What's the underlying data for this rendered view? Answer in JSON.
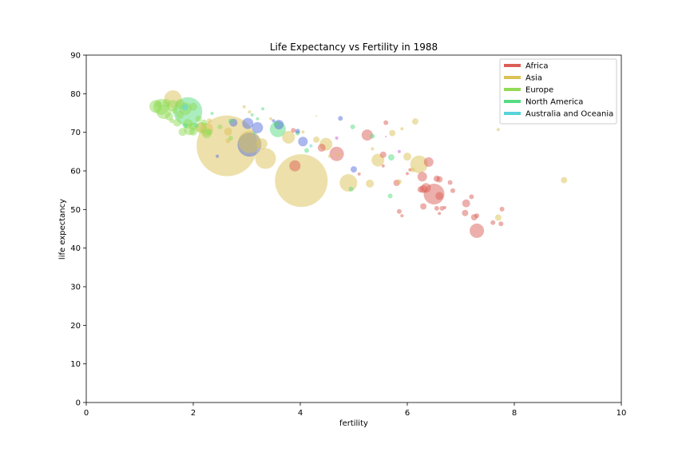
{
  "chart_data": {
    "type": "scatter",
    "title": "Life Expectancy vs Fertility in 1988",
    "xlabel": "fertility",
    "ylabel": "life expectancy",
    "xlim": [
      0,
      10
    ],
    "ylim": [
      0,
      90
    ],
    "xticks": [
      0,
      2,
      4,
      6,
      8,
      10
    ],
    "yticks": [
      0,
      10,
      20,
      30,
      40,
      50,
      60,
      70,
      80,
      90
    ],
    "grid": false,
    "legend_position": "top-right",
    "point_alpha": 0.5,
    "series": [
      {
        "name": "Africa",
        "color": "#db5f57",
        "points": [
          [
            5.25,
            69.3,
            7
          ],
          [
            5.6,
            72.5,
            3
          ],
          [
            5.9,
            48.4,
            2
          ],
          [
            5.85,
            49.5,
            3
          ],
          [
            6.5,
            54.0,
            13
          ],
          [
            6.55,
            58.0,
            4
          ],
          [
            6.6,
            53.5,
            5
          ],
          [
            6.65,
            50.3,
            3
          ],
          [
            6.4,
            62.3,
            6
          ],
          [
            6.28,
            58.5,
            6
          ],
          [
            6.3,
            55.3,
            5
          ],
          [
            6.35,
            55.6,
            6
          ],
          [
            6.3,
            50.8,
            4
          ],
          [
            6.55,
            50.3,
            3
          ],
          [
            6.6,
            57.8,
            4
          ],
          [
            6.7,
            50.5,
            2
          ],
          [
            6.85,
            54.9,
            3
          ],
          [
            6.8,
            57.0,
            3
          ],
          [
            7.08,
            49.1,
            4
          ],
          [
            7.1,
            51.6,
            5
          ],
          [
            7.2,
            53.3,
            3
          ],
          [
            7.25,
            48.0,
            4
          ],
          [
            7.3,
            48.4,
            3
          ],
          [
            7.3,
            44.5,
            9
          ],
          [
            7.6,
            46.6,
            3
          ],
          [
            7.77,
            50.1,
            3
          ],
          [
            7.75,
            46.3,
            3
          ],
          [
            5.55,
            64.2,
            4
          ],
          [
            5.8,
            56.9,
            4
          ],
          [
            4.68,
            64.4,
            9
          ],
          [
            4.4,
            66.0,
            5
          ],
          [
            3.87,
            70.5,
            3
          ],
          [
            3.9,
            61.3,
            7
          ],
          [
            5.1,
            59.2,
            2
          ],
          [
            5.55,
            61.3,
            2
          ],
          [
            6.0,
            59.3,
            2
          ],
          [
            6.05,
            60.3,
            2
          ],
          [
            6.25,
            55.2,
            4
          ],
          [
            6.6,
            49.0,
            2
          ]
        ]
      },
      {
        "name": "Asia",
        "color": "#dbc257",
        "points": [
          [
            2.63,
            66.5,
            38
          ],
          [
            4.02,
            57.5,
            33
          ],
          [
            3.35,
            63.2,
            13
          ],
          [
            3.05,
            67.5,
            14
          ],
          [
            1.62,
            78.6,
            11
          ],
          [
            3.78,
            68.7,
            8
          ],
          [
            4.48,
            66.9,
            8
          ],
          [
            4.9,
            56.9,
            11
          ],
          [
            5.45,
            62.8,
            8
          ],
          [
            6.22,
            61.7,
            11
          ],
          [
            2.25,
            70.8,
            8
          ],
          [
            3.28,
            67.0,
            7
          ],
          [
            4.3,
            68.1,
            4
          ],
          [
            6.15,
            72.8,
            4
          ],
          [
            5.3,
            56.7,
            5
          ],
          [
            6.0,
            63.7,
            5
          ],
          [
            7.7,
            47.9,
            4
          ],
          [
            8.93,
            57.6,
            4
          ],
          [
            2.13,
            71.3,
            6
          ],
          [
            2.3,
            73.0,
            3
          ],
          [
            2.65,
            70.2,
            5
          ],
          [
            5.72,
            69.8,
            4
          ],
          [
            2.95,
            76.6,
            2
          ],
          [
            3.45,
            73.5,
            2
          ],
          [
            4.3,
            74.2,
            1
          ],
          [
            5.9,
            70.9,
            2
          ],
          [
            5.35,
            65.7,
            2
          ],
          [
            5.85,
            57.2,
            3
          ],
          [
            6.1,
            60.3,
            3
          ],
          [
            7.7,
            70.7,
            2
          ],
          [
            4.7,
            64.2,
            2
          ],
          [
            4.55,
            63.8,
            2
          ],
          [
            3.05,
            75.3,
            2
          ],
          [
            4.05,
            70.1,
            2
          ],
          [
            2.65,
            67.8,
            3
          ]
        ]
      },
      {
        "name": "Europe",
        "color": "#91db57",
        "points": [
          [
            1.4,
            76.6,
            10
          ],
          [
            1.45,
            75.3,
            9
          ],
          [
            1.62,
            76.9,
            7
          ],
          [
            1.75,
            77.3,
            6
          ],
          [
            1.85,
            76.1,
            8
          ],
          [
            1.55,
            74.1,
            5
          ],
          [
            1.7,
            72.5,
            5
          ],
          [
            1.93,
            70.7,
            7
          ],
          [
            2.0,
            71.5,
            5
          ],
          [
            2.1,
            73.5,
            4
          ],
          [
            1.8,
            70.1,
            5
          ],
          [
            1.3,
            76.7,
            8
          ],
          [
            2.15,
            71.2,
            7
          ],
          [
            2.25,
            69.7,
            6
          ],
          [
            2.2,
            72.5,
            4
          ],
          [
            1.35,
            77.3,
            4
          ],
          [
            1.5,
            77.6,
            5
          ],
          [
            1.6,
            73.0,
            3
          ],
          [
            1.65,
            75.6,
            4
          ],
          [
            1.9,
            72.2,
            6
          ],
          [
            2.3,
            70.1,
            4
          ],
          [
            2.0,
            70.2,
            5
          ],
          [
            1.75,
            74.5,
            5
          ],
          [
            2.0,
            76.6,
            5
          ],
          [
            2.7,
            68.5,
            3
          ],
          [
            2.5,
            71.4,
            3
          ]
        ]
      },
      {
        "name": "North America",
        "color": "#57db80",
        "points": [
          [
            1.9,
            75.4,
            18
          ],
          [
            3.58,
            70.8,
            10
          ],
          [
            5.68,
            53.5,
            3
          ],
          [
            5.7,
            63.5,
            4
          ],
          [
            5.35,
            69.0,
            3
          ],
          [
            4.12,
            65.3,
            3
          ],
          [
            3.95,
            69.8,
            3
          ],
          [
            4.98,
            71.4,
            3
          ],
          [
            4.95,
            55.3,
            3
          ],
          [
            3.3,
            76.1,
            2
          ],
          [
            3.1,
            74.5,
            2
          ],
          [
            2.35,
            74.9,
            2
          ],
          [
            2.7,
            72.9,
            3
          ],
          [
            3.55,
            72.1,
            3
          ],
          [
            3.2,
            73.5,
            2
          ],
          [
            2.05,
            71.8,
            3
          ],
          [
            1.85,
            71.7,
            3
          ]
        ]
      },
      {
        "name": "Australia and Oceania",
        "color": "#57d3db",
        "points": [
          [
            1.85,
            76.5,
            4
          ],
          [
            3.15,
            69.8,
            2
          ],
          [
            4.2,
            66.5,
            2
          ]
        ]
      },
      {
        "name": "",
        "color": "#5770db",
        "points": [
          [
            3.05,
            66.8,
            15
          ],
          [
            3.2,
            71.2,
            7
          ],
          [
            3.02,
            72.3,
            7
          ],
          [
            3.6,
            72.0,
            6
          ],
          [
            4.05,
            67.6,
            6
          ],
          [
            2.75,
            72.5,
            5
          ],
          [
            3.95,
            70.3,
            3
          ],
          [
            4.75,
            73.6,
            3
          ],
          [
            5.0,
            60.4,
            4
          ],
          [
            2.45,
            63.8,
            2
          ],
          [
            3.5,
            73.0,
            2
          ]
        ]
      },
      {
        "name": "",
        "color": "#c957db",
        "points": [
          [
            4.68,
            68.5,
            2
          ],
          [
            5.85,
            65.0,
            2
          ],
          [
            5.6,
            68.9,
            1
          ]
        ]
      }
    ]
  }
}
